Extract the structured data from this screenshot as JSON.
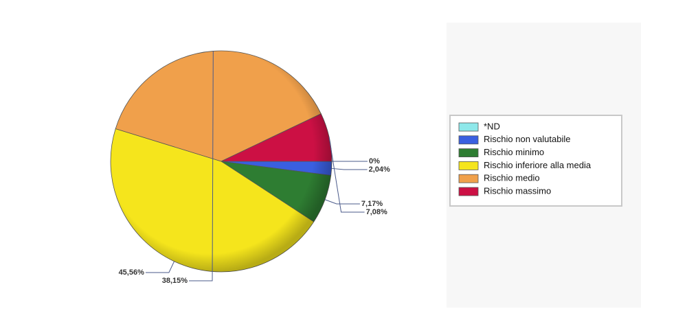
{
  "chart_data": {
    "type": "pie",
    "categories": [
      "*ND",
      "Rischio non valutabile",
      "Rischio minimo",
      "Rischio inferiore alla media",
      "Rischio medio",
      "Rischio massimo"
    ],
    "values": [
      0,
      2.04,
      7.17,
      45.56,
      38.15,
      7.08
    ],
    "value_labels": [
      "0%",
      "2,04%",
      "7,17%",
      "45,56%",
      "38,15%",
      "7,08%"
    ],
    "colors": [
      "#8ee8ea",
      "#3a5fe0",
      "#2e7d32",
      "#f5e51c",
      "#f0a04b",
      "#cc1044"
    ]
  }
}
